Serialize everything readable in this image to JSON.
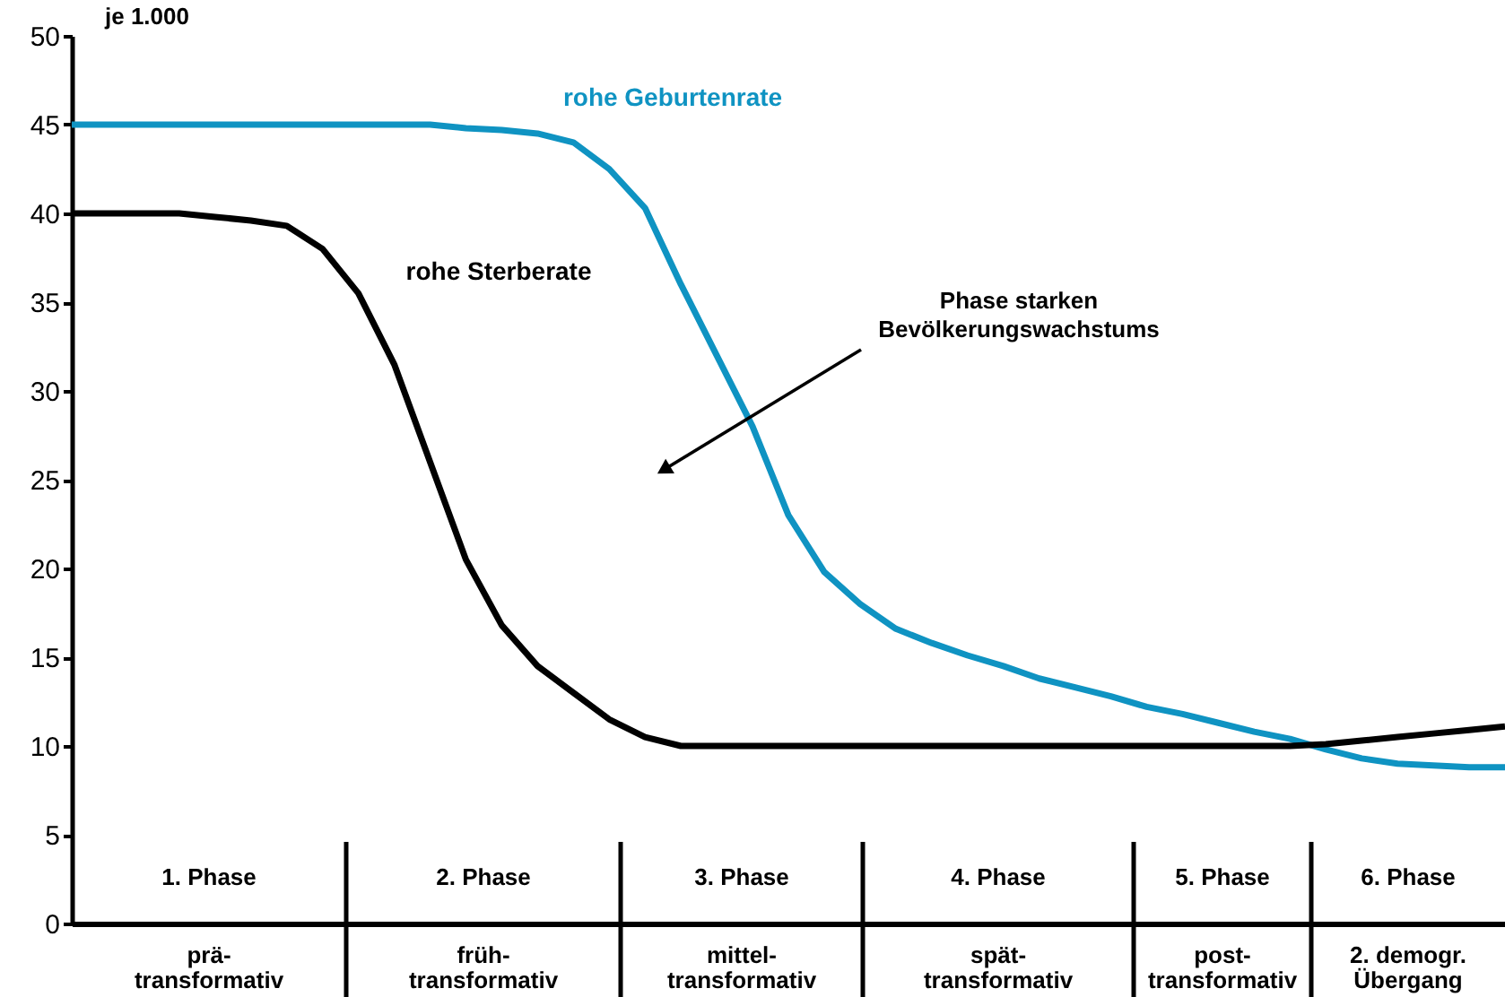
{
  "chart_data": {
    "type": "line",
    "ylabel": "je 1.000",
    "categories": [
      null,
      null,
      null,
      null,
      null,
      null,
      null,
      null,
      null,
      null,
      null,
      null,
      null,
      null,
      null,
      null,
      null,
      null,
      null,
      null,
      null,
      null,
      null,
      null,
      null,
      null,
      null,
      null,
      null,
      null,
      null,
      null,
      null,
      null,
      null,
      null,
      null,
      null,
      null,
      null,
      null
    ],
    "ylim": [
      0,
      50
    ],
    "yticks": [
      0,
      5,
      10,
      15,
      20,
      25,
      30,
      35,
      40,
      45,
      50
    ],
    "tick_labels": "y",
    "grid": false,
    "legend": false,
    "marker": "none",
    "line_style": "solid",
    "series": [
      {
        "name": "rohe Geburtenrate",
        "color": "#0f93c2",
        "values": [
          45,
          45,
          45,
          45,
          45,
          45,
          45,
          45,
          45,
          45,
          45,
          44.8,
          44.7,
          44.5,
          44,
          42.5,
          40.3,
          36,
          32,
          28,
          23,
          19.8,
          18,
          16.6,
          15.8,
          15.1,
          14.5,
          13.8,
          13.3,
          12.8,
          12.2,
          11.8,
          11.3,
          10.8,
          10.4,
          9.8,
          9.3,
          9.0,
          8.9,
          8.8,
          8.8
        ]
      },
      {
        "name": "rohe Sterberate",
        "color": "#000000",
        "values": [
          40,
          40,
          40,
          40,
          39.8,
          39.6,
          39.3,
          38,
          35.5,
          31.5,
          26,
          20.5,
          16.8,
          14.5,
          13,
          11.5,
          10.5,
          10,
          10,
          10,
          10,
          10,
          10,
          10,
          10,
          10,
          10,
          10,
          10,
          10,
          10,
          10,
          10,
          10,
          10,
          10.1,
          10.3,
          10.5,
          10.7,
          10.9,
          11.1
        ]
      }
    ],
    "annotations": [
      "Phase starken\nBevölkerungswachstums",
      "1. Phase",
      "2. Phase",
      "3. Phase",
      "4. Phase",
      "5. Phase",
      "6. Phase",
      "prä-\ntransformativ",
      "früh-\ntransformativ",
      "mittel-\ntransformativ",
      "spät-\ntransformativ",
      "post-\ntransformativ",
      "2. demogr.\nÜbergang"
    ]
  }
}
